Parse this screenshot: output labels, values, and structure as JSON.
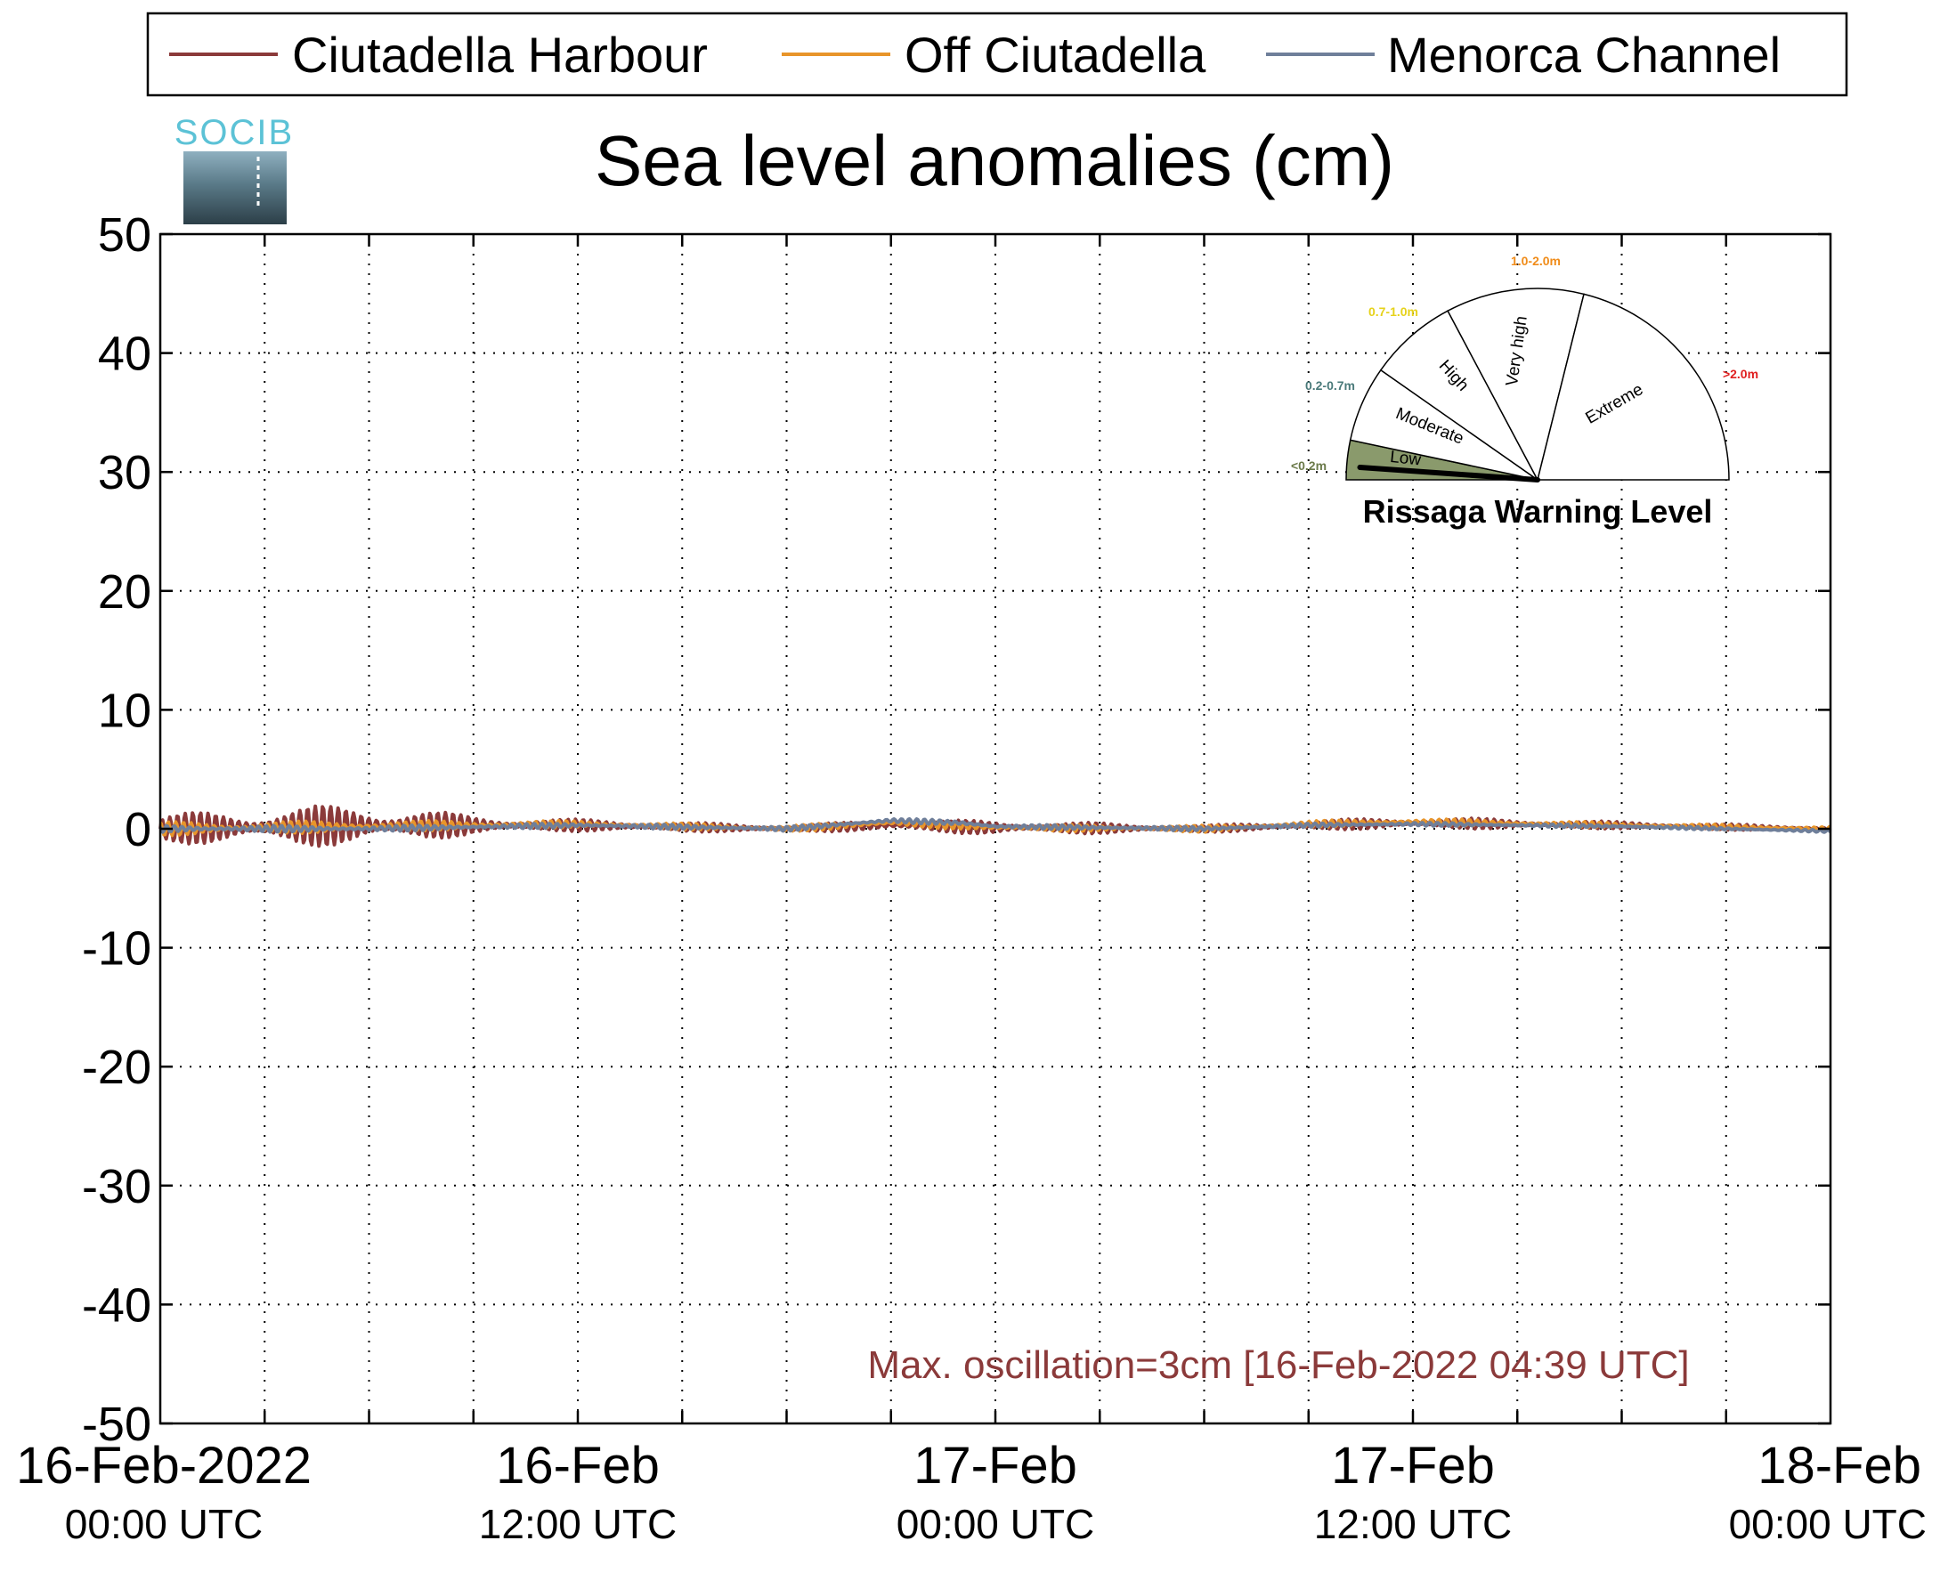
{
  "logo": {
    "text": "SOCIB"
  },
  "legend": {
    "items": [
      {
        "label": "Ciutadella Harbour",
        "color": "#8b3a3a"
      },
      {
        "label": "Off Ciutadella",
        "color": "#e8952a"
      },
      {
        "label": "Menorca Channel",
        "color": "#6f7f9a"
      }
    ]
  },
  "chart_data": {
    "type": "line",
    "title": "Sea level anomalies (cm)",
    "ylim": [
      -50,
      50
    ],
    "yticks": [
      "50",
      "40",
      "30",
      "20",
      "10",
      "0",
      "-10",
      "-20",
      "-30",
      "-40",
      "-50"
    ],
    "xlim_hours": [
      0,
      48
    ],
    "x_tick_labels": [
      {
        "hour": 0,
        "line1": "16-Feb-2022",
        "line2": "00:00 UTC"
      },
      {
        "hour": 12,
        "line1": "16-Feb",
        "line2": "12:00 UTC"
      },
      {
        "hour": 24,
        "line1": "17-Feb",
        "line2": "00:00 UTC"
      },
      {
        "hour": 36,
        "line1": "17-Feb",
        "line2": "12:00 UTC"
      },
      {
        "hour": 48,
        "line1": "18-Feb",
        "line2": "00:00 UTC"
      }
    ],
    "x_grid_hours": [
      3,
      6,
      9,
      12,
      15,
      18,
      21,
      24,
      27,
      30,
      33,
      36,
      39,
      42,
      45
    ],
    "grid": true,
    "legend_position": "top",
    "series": [
      {
        "name": "Ciutadella Harbour",
        "color": "#8b3a3a",
        "baseline": [
          [
            0,
            0
          ],
          [
            6,
            0.3
          ],
          [
            12,
            0.3
          ],
          [
            18,
            0
          ],
          [
            21,
            0.3
          ],
          [
            24,
            0.1
          ],
          [
            30,
            0
          ],
          [
            33,
            0.3
          ],
          [
            36,
            0.5
          ],
          [
            42,
            0.3
          ],
          [
            48,
            0
          ]
        ],
        "amplitude": [
          [
            0,
            1.2
          ],
          [
            3,
            1.6
          ],
          [
            6,
            1.8
          ],
          [
            9,
            0.8
          ],
          [
            12,
            0.5
          ],
          [
            18,
            0.3
          ],
          [
            24,
            0.6
          ],
          [
            30,
            0.3
          ],
          [
            36,
            0.5
          ],
          [
            42,
            0.3
          ],
          [
            48,
            0.2
          ]
        ]
      },
      {
        "name": "Off Ciutadella",
        "color": "#e8952a",
        "baseline": [
          [
            0,
            0
          ],
          [
            6,
            0.2
          ],
          [
            12,
            0.4
          ],
          [
            18,
            0
          ],
          [
            21,
            0.5
          ],
          [
            24,
            0.1
          ],
          [
            30,
            0
          ],
          [
            33,
            0.4
          ],
          [
            36,
            0.6
          ],
          [
            42,
            0.3
          ],
          [
            48,
            0
          ]
        ],
        "amplitude": [
          [
            0,
            0.6
          ],
          [
            6,
            0.5
          ],
          [
            12,
            0.3
          ],
          [
            24,
            0.3
          ],
          [
            36,
            0.3
          ],
          [
            48,
            0.2
          ]
        ]
      },
      {
        "name": "Menorca Channel",
        "color": "#6f7f9a",
        "baseline": [
          [
            0,
            0
          ],
          [
            6,
            0
          ],
          [
            12,
            0.3
          ],
          [
            18,
            0
          ],
          [
            21,
            0.7
          ],
          [
            23,
            0.5
          ],
          [
            24,
            0.2
          ],
          [
            30,
            0
          ],
          [
            33,
            0.3
          ],
          [
            36,
            0.4
          ],
          [
            42,
            0.2
          ],
          [
            48,
            -0.2
          ]
        ],
        "amplitude": [
          [
            0,
            0.3
          ],
          [
            12,
            0.2
          ],
          [
            24,
            0.2
          ],
          [
            48,
            0.1
          ]
        ]
      }
    ],
    "annotation": {
      "text": "Max. oscillation=3cm [16-Feb-2022 04:39 UTC]",
      "color": "#8b3a3a"
    }
  },
  "gauge": {
    "title": "Rissaga Warning Level",
    "level": "Low",
    "segments": [
      {
        "name": "Low",
        "range": "<0.2m",
        "range_color": "#6b7a4a",
        "fill": "#8a9a6c"
      },
      {
        "name": "Moderate",
        "range": "0.2-0.7m",
        "range_color": "#4a7a7a",
        "fill": "#ffffff"
      },
      {
        "name": "High",
        "range": "0.7-1.0m",
        "range_color": "#e6d21a",
        "fill": "#ffffff"
      },
      {
        "name": "Very high",
        "range": "1.0-2.0m",
        "range_color": "#f08c1a",
        "fill": "#ffffff"
      },
      {
        "name": "Extreme",
        "range": ">2.0m",
        "range_color": "#e02020",
        "fill": "#ffffff"
      }
    ]
  }
}
